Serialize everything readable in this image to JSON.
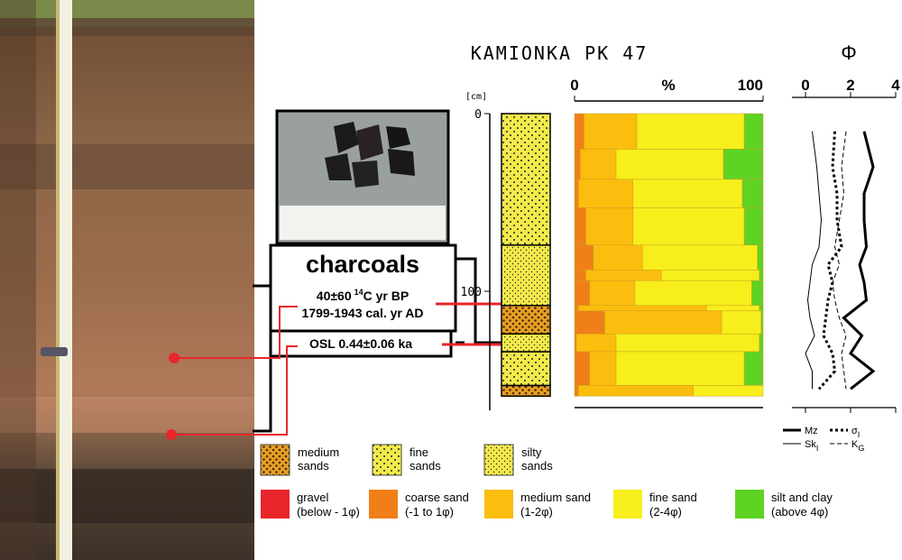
{
  "title": "KAMIONKA PK 47",
  "photo_labels": {
    "charcoals": "charcoals",
    "c14": {
      "main": "40±60",
      "sup": "14",
      "rest": "C yr BP"
    },
    "cal": "1799-1943 cal. yr AD",
    "osl": "OSL 0.44±0.06 ka"
  },
  "chart_data": [
    {
      "type": "bar",
      "title": "%",
      "ylabel": "[cm]",
      "ylim": [
        0,
        167
      ],
      "yticks": [
        0,
        100
      ],
      "xlim": [
        0,
        100
      ],
      "xticks": [
        0,
        100
      ],
      "depth_top": [
        0,
        20,
        37,
        53,
        74,
        88,
        94,
        108,
        111,
        124,
        134,
        153
      ],
      "depth_bottom": [
        20,
        37,
        53,
        74,
        88,
        94,
        108,
        111,
        124,
        134,
        153,
        159
      ],
      "series": [
        {
          "name": [
            "gravel",
            "(below - 1φ)"
          ],
          "color": "#e8262a",
          "values": [
            0,
            0,
            0,
            0,
            0,
            0,
            0,
            0,
            0,
            0,
            0,
            0
          ]
        },
        {
          "name": [
            "coarse sand",
            "(-1 to 1φ)"
          ],
          "color": "#f07f17",
          "values": [
            5,
            3,
            2,
            6,
            10,
            6,
            8,
            2,
            16,
            1,
            8,
            2
          ]
        },
        {
          "name": [
            "medium sand",
            "(1-2φ)"
          ],
          "color": "#fbbd0e",
          "values": [
            28,
            19,
            29,
            25,
            26,
            40,
            24,
            68,
            62,
            21,
            14,
            61
          ]
        },
        {
          "name": [
            "fine sand",
            "(2-4φ)"
          ],
          "color": "#f7ee1c",
          "values": [
            57,
            57,
            58,
            59,
            61,
            52,
            62,
            28,
            21,
            76,
            68,
            37
          ]
        },
        {
          "name": [
            "silt and clay",
            "(above 4φ)"
          ],
          "color": "#5ed323",
          "values": [
            10,
            21,
            11,
            10,
            3,
            2,
            6,
            2,
            1,
            2,
            10,
            0
          ]
        }
      ],
      "lithology": [
        {
          "name": [
            "medium",
            "sands"
          ],
          "pattern": "medium",
          "layers": [
            [
              108,
              124
            ],
            [
              153,
              159
            ]
          ]
        },
        {
          "name": [
            "fine",
            "sands"
          ],
          "pattern": "fine",
          "layers": [
            [
              0,
              74
            ],
            [
              134,
              153
            ]
          ]
        },
        {
          "name": [
            "silty",
            "sands"
          ],
          "pattern": "silty",
          "layers": [
            [
              74,
              108
            ],
            [
              124,
              134
            ]
          ]
        }
      ]
    },
    {
      "type": "line",
      "title": "Φ",
      "xlim": [
        0,
        4
      ],
      "xticks": [
        0,
        2,
        4
      ],
      "depth": [
        10,
        30,
        45,
        60,
        75,
        85,
        95,
        105,
        115,
        125,
        135,
        145,
        155
      ],
      "series": [
        {
          "name": [
            "Mz"
          ],
          "style": "solid",
          "width": 3,
          "values": [
            2.6,
            3.0,
            2.6,
            2.6,
            2.7,
            2.4,
            2.6,
            2.7,
            1.7,
            2.5,
            2.0,
            3.0,
            2.0
          ]
        },
        {
          "name": [
            "σ",
            "I"
          ],
          "style": "dotted",
          "width": 3,
          "values": [
            1.3,
            1.2,
            1.4,
            1.4,
            1.6,
            1.0,
            1.2,
            1.0,
            0.9,
            0.8,
            1.2,
            1.3,
            0.6
          ]
        },
        {
          "name": [
            "Sk",
            "I"
          ],
          "style": "solid",
          "width": 1,
          "values": [
            0.3,
            0.5,
            0.6,
            0.7,
            0.6,
            0.3,
            0.2,
            0.1,
            0.2,
            0.4,
            0.0,
            0.3,
            0.3
          ]
        },
        {
          "name": [
            "K",
            "G"
          ],
          "style": "dashed",
          "width": 1,
          "values": [
            1.8,
            1.6,
            1.7,
            1.5,
            1.3,
            1.5,
            1.2,
            1.3,
            1.5,
            1.8,
            1.6,
            1.7,
            1.8
          ]
        }
      ]
    }
  ]
}
